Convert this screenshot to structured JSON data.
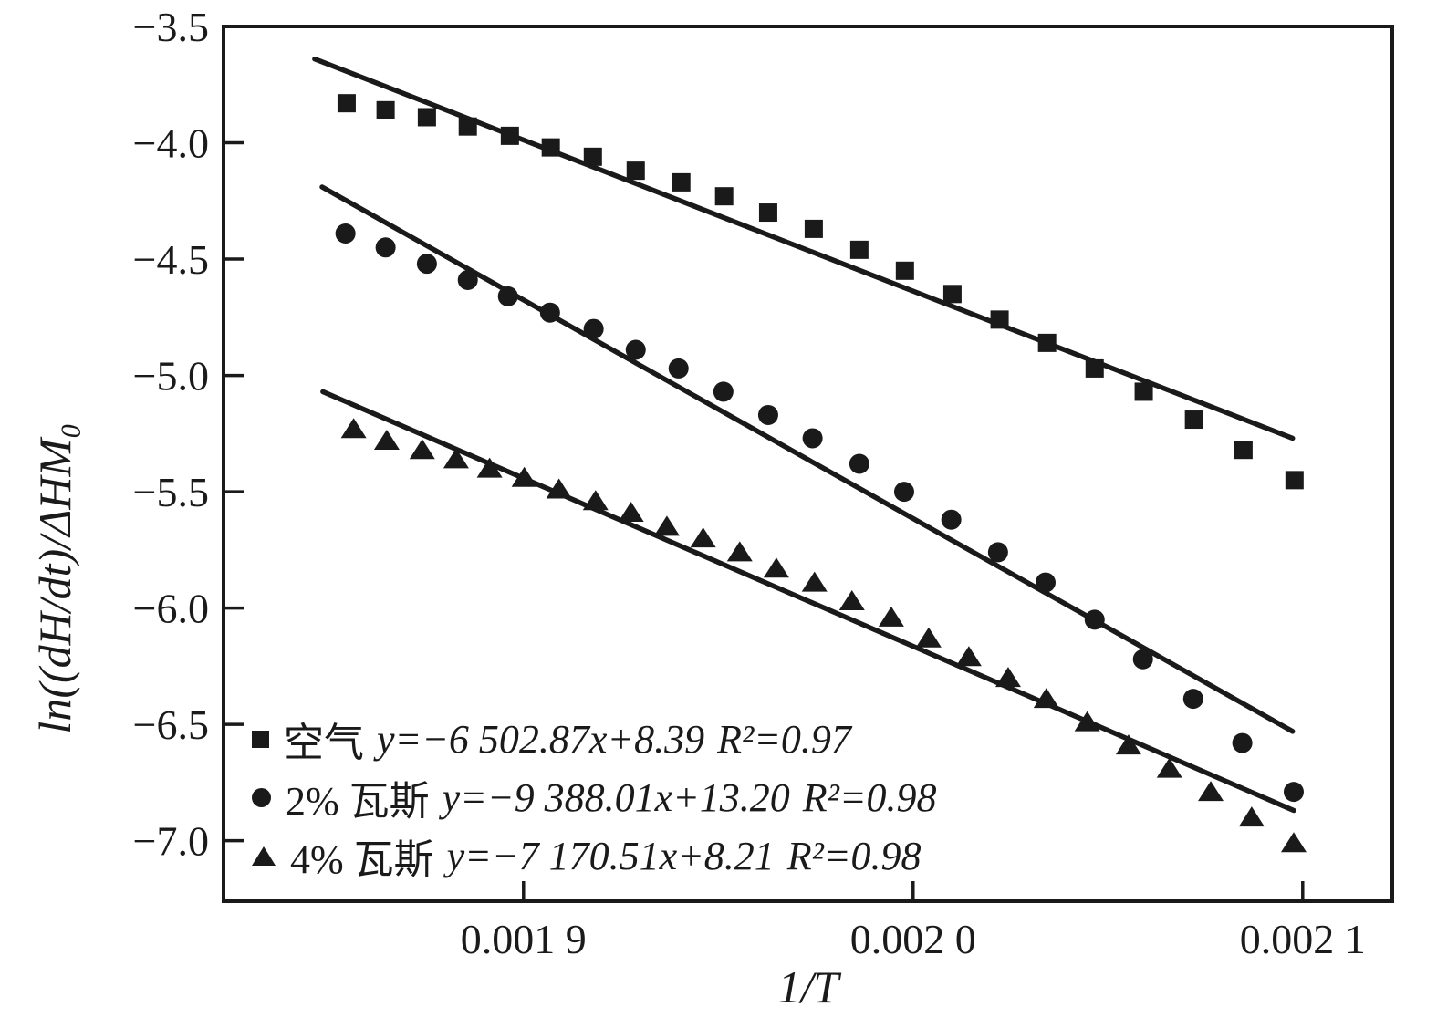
{
  "figure": {
    "background": "#ffffff",
    "ink_color": "#1a1a1a"
  },
  "axes": {
    "x_label": "1/T",
    "y_label": "ln((dH/dt)/ΔHM₀",
    "xlim": [
      0.001823,
      0.002123
    ],
    "ylim": [
      -7.26,
      -3.5
    ],
    "x_ticks": [
      {
        "value": 0.0019,
        "label": "0.001 9"
      },
      {
        "value": 0.002,
        "label": "0.002 0"
      },
      {
        "value": 0.0021,
        "label": "0.002 1"
      }
    ],
    "y_ticks": [
      {
        "value": -3.5,
        "label": "−3.5"
      },
      {
        "value": -4.0,
        "label": "−4.0"
      },
      {
        "value": -4.5,
        "label": "−4.5"
      },
      {
        "value": -5.0,
        "label": "−5.0"
      },
      {
        "value": -5.5,
        "label": "−5.5"
      },
      {
        "value": -6.0,
        "label": "−6.0"
      },
      {
        "value": -6.5,
        "label": "−6.5"
      },
      {
        "value": -7.0,
        "label": "−7.0"
      }
    ]
  },
  "legend": {
    "items": [
      {
        "marker": "square",
        "name": "空气",
        "equation": "y=−6 502.87x+8.39",
        "r2": "R²=0.97"
      },
      {
        "marker": "circle",
        "name": "2% 瓦斯",
        "equation": "y=−9 388.01x+13.20",
        "r2": "R²=0.98"
      },
      {
        "marker": "triangle",
        "name": "4% 瓦斯",
        "equation": "y=−7 170.51x+8.21",
        "r2": "R²=0.98"
      }
    ]
  },
  "chart_data": {
    "type": "scatter",
    "title": "",
    "xlabel": "1/T",
    "ylabel": "ln((dH/dt)/ΔHM₀",
    "grid": false,
    "legend_position": "lower-left",
    "xlim": [
      0.001823,
      0.002123
    ],
    "ylim": [
      -7.26,
      -3.5
    ],
    "series": [
      {
        "name": "空气",
        "marker": "square",
        "fit": {
          "slope": -6502.87,
          "intercept": 8.39,
          "r2": 0.97,
          "line_x": [
            0.0018464,
            0.0020974
          ],
          "line_y": [
            -3.64,
            -5.27
          ]
        },
        "x": [
          0.0018546,
          0.0018646,
          0.0018752,
          0.0018857,
          0.0018965,
          0.001907,
          0.0019178,
          0.0019288,
          0.0019405,
          0.0019515,
          0.0019628,
          0.0019745,
          0.0019862,
          0.0019979,
          0.0020101,
          0.0020222,
          0.0020344,
          0.0020466,
          0.0020592,
          0.0020721,
          0.0020848,
          0.0020979
        ],
        "y": [
          -3.83,
          -3.86,
          -3.89,
          -3.93,
          -3.97,
          -4.02,
          -4.06,
          -4.12,
          -4.17,
          -4.23,
          -4.3,
          -4.37,
          -4.46,
          -4.55,
          -4.65,
          -4.76,
          -4.86,
          -4.97,
          -5.07,
          -5.19,
          -5.32,
          -5.45
        ]
      },
      {
        "name": "2% 瓦斯",
        "marker": "circle",
        "fit": {
          "slope": -9388.01,
          "intercept": 13.2,
          "r2": 0.98,
          "line_x": [
            0.0018483,
            0.0020974
          ],
          "line_y": [
            -4.19,
            -6.53
          ]
        },
        "x": [
          0.0018543,
          0.0018646,
          0.0018752,
          0.0018857,
          0.001896,
          0.0019068,
          0.001918,
          0.0019288,
          0.0019398,
          0.0019513,
          0.0019628,
          0.0019742,
          0.0019862,
          0.0019977,
          0.0020098,
          0.0020218,
          0.002034,
          0.0020466,
          0.002059,
          0.0020719,
          0.0020845,
          0.0020977
        ],
        "y": [
          -4.39,
          -4.45,
          -4.52,
          -4.59,
          -4.66,
          -4.73,
          -4.8,
          -4.89,
          -4.97,
          -5.07,
          -5.17,
          -5.27,
          -5.38,
          -5.5,
          -5.62,
          -5.76,
          -5.89,
          -6.05,
          -6.22,
          -6.39,
          -6.58,
          -6.79
        ]
      },
      {
        "name": "4% 瓦斯",
        "marker": "triangle",
        "fit": {
          "slope": -7170.51,
          "intercept": 8.21,
          "r2": 0.98,
          "line_x": [
            0.0018485,
            0.0020977
          ],
          "line_y": [
            -5.07,
            -6.87
          ]
        },
        "x": [
          0.0018564,
          0.0018649,
          0.001874,
          0.0018827,
          0.0018913,
          0.0019002,
          0.0019091,
          0.0019185,
          0.0019276,
          0.0019368,
          0.0019461,
          0.0019555,
          0.0019649,
          0.0019747,
          0.0019843,
          0.0019944,
          0.002004,
          0.0020143,
          0.0020244,
          0.0020342,
          0.0020447,
          0.0020553,
          0.0020658,
          0.0020764,
          0.0020869,
          0.0020977
        ],
        "y": [
          -5.23,
          -5.28,
          -5.32,
          -5.36,
          -5.4,
          -5.44,
          -5.49,
          -5.54,
          -5.59,
          -5.65,
          -5.7,
          -5.76,
          -5.83,
          -5.89,
          -5.97,
          -6.04,
          -6.13,
          -6.21,
          -6.3,
          -6.39,
          -6.49,
          -6.59,
          -6.69,
          -6.79,
          -6.9,
          -7.01
        ]
      }
    ]
  }
}
